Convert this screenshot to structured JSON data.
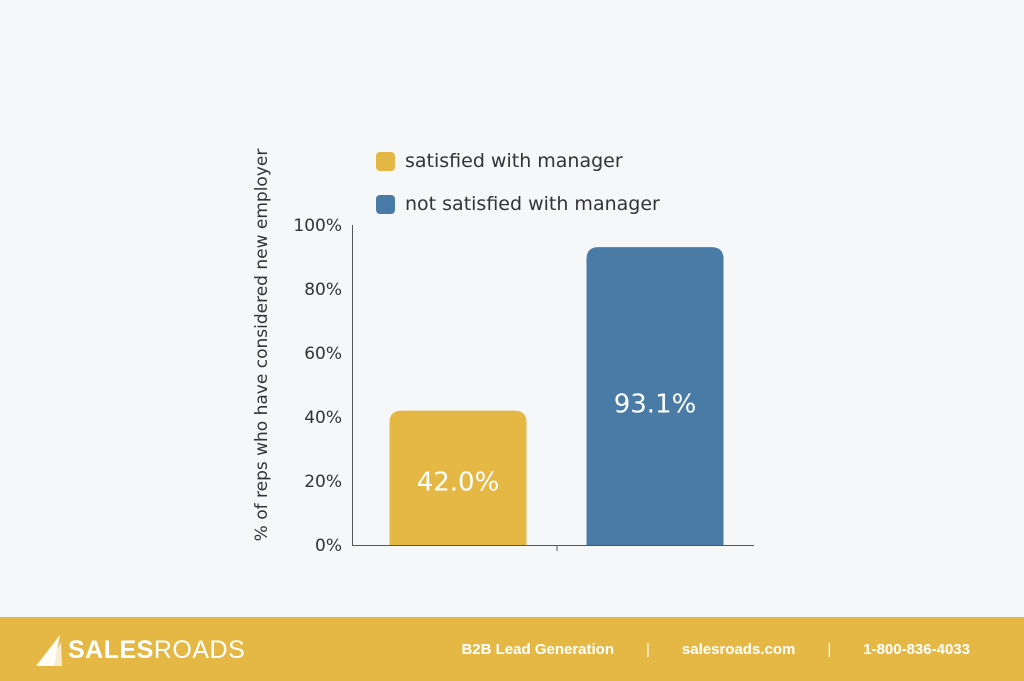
{
  "chart_data": {
    "type": "bar",
    "categories": [
      "satisfied with manager",
      "not satisfied with manager"
    ],
    "values": [
      42.0,
      93.1
    ],
    "data_labels": [
      "42.0%",
      "93.1%"
    ],
    "colors": [
      "#e5b846",
      "#4a7ba7"
    ],
    "ylabel": "% of reps who have considered new employer",
    "ylim": [
      0,
      100
    ],
    "yticks": [
      "0%",
      "20%",
      "40%",
      "60%",
      "80%",
      "100%"
    ],
    "legend": [
      "satisfied with manager",
      "not satisfied with manager"
    ],
    "legend_position": "top-left",
    "grid": false
  },
  "footer": {
    "logo_bold": "SALES",
    "logo_light": "ROADS",
    "tagline": "B2B Lead Generation",
    "website": "salesroads.com",
    "phone": "1-800-836-4033",
    "separator": "|",
    "background_color": "#e5b846"
  }
}
